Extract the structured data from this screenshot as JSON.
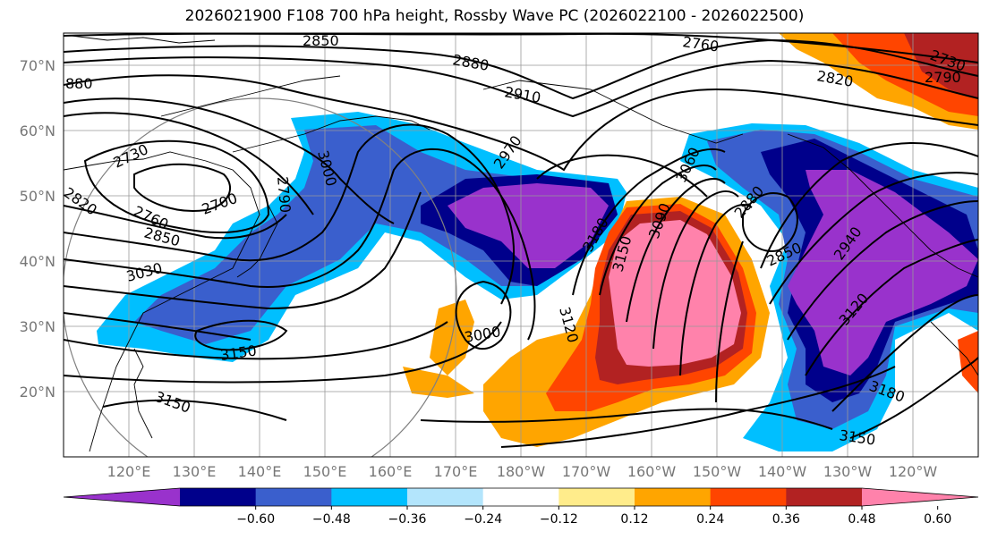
{
  "title": "2026021900 F108 700 hPa height, Rossby Wave PC (2026022100 - 2026022500)",
  "lat_labels": [
    "70°N",
    "60°N",
    "50°N",
    "40°N",
    "30°N",
    "20°N"
  ],
  "lon_labels": [
    "120°E",
    "130°E",
    "140°E",
    "150°E",
    "160°E",
    "170°E",
    "180°W",
    "170°W",
    "160°W",
    "150°W",
    "140°W",
    "130°W",
    "120°W"
  ],
  "contour_labels": [
    "2850",
    "2760",
    "880",
    "2880",
    "2910",
    "2820",
    "2790",
    "2730",
    "2820",
    "2760",
    "2700",
    "2850",
    "3030",
    "3000",
    "2790",
    "2970",
    "3060",
    "3090",
    "3180",
    "3150",
    "3120",
    "2880",
    "2850",
    "2940",
    "3120",
    "3000",
    "3150",
    "3150",
    "3180",
    "3150",
    "2730"
  ],
  "colorbar": {
    "ticks": [
      "−0.60",
      "−0.48",
      "−0.36",
      "−0.24",
      "−0.12",
      "0.12",
      "0.24",
      "0.36",
      "0.48",
      "0.60"
    ],
    "colors": [
      "#9932cc",
      "#00008b",
      "#3a5fcd",
      "#00bfff",
      "#b3e5fc",
      "#ffffff",
      "#ffec8b",
      "#ffa500",
      "#ff4500",
      "#b22222",
      "#ff82ab"
    ]
  },
  "fill_colors": {
    "purple": "#9932cc",
    "navy": "#00008b",
    "blue": "#3a5fcd",
    "sky": "#00bfff",
    "orange": "#ffa500",
    "red": "#ff4500",
    "darkred": "#b22222",
    "pink": "#ff82ab"
  }
}
